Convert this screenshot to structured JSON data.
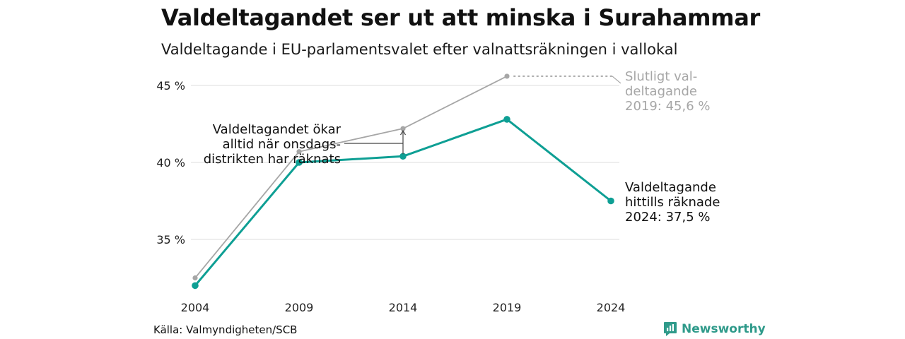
{
  "title": "Valdeltagandet ser ut att minska i Surahammar",
  "subtitle": "Valdeltagande i EU-parlamentsvalet efter valnattsräkningen i vallokal",
  "source": "Källa: Valmyndigheten/SCB",
  "brand": {
    "name": "Newsworthy",
    "icon": "newsworthy-logo-icon",
    "color": "#2f9a8a"
  },
  "chart_data": {
    "type": "line",
    "x": [
      "2004",
      "2009",
      "2014",
      "2019",
      "2024"
    ],
    "ylim": [
      31.5,
      46.5
    ],
    "yticks": [
      35,
      40,
      45
    ],
    "ytick_labels": [
      "35 %",
      "40 %",
      "45 %"
    ],
    "grid": true,
    "series": [
      {
        "values": [
          32.5,
          40.7,
          42.2,
          45.6,
          null
        ],
        "color": "#a6a6a6"
      },
      {
        "values": [
          32.0,
          40.0,
          40.4,
          42.8,
          37.5
        ],
        "color": "#0e9f94"
      }
    ],
    "annotations": {
      "final_turnout": [
        "Slutligt val-",
        "deltagande",
        "2019: 45,6 %"
      ],
      "current_turnout": [
        "Valdeltagande",
        "hittills räknade",
        "2024: 37,5 %"
      ],
      "wednesday_note": [
        "Valdeltagandet ökar",
        "alltid när onsdags-",
        "distrikten har räknats"
      ]
    }
  }
}
